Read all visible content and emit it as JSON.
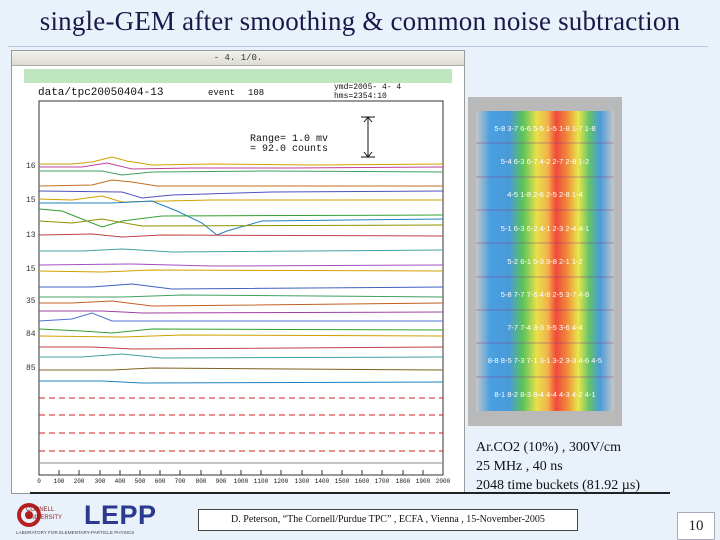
{
  "slide": {
    "title": "single-GEM after smoothing & common noise subtraction",
    "page_number": "10",
    "credit": "D. Peterson, “The Cornell/Purdue TPC” , ECFA , Vienna , 15-November-2005"
  },
  "scope": {
    "window_bar": "- 4. 1/0.",
    "file": "data/tpc20050404-13",
    "event_label": "event",
    "event_value": "108",
    "ymd": "ymd=2005- 4- 4",
    "hms": "hms=2354:10",
    "range_line1": "Range=    1.0 mv",
    "range_line2": "=   92.0  counts",
    "channel_labels": [
      "16",
      "15",
      "13",
      "15",
      "35",
      "84",
      "85"
    ],
    "x_ticks": [
      "0",
      "100",
      "200",
      "300",
      "400",
      "500",
      "600",
      "700",
      "800",
      "900",
      "1000",
      "1100",
      "1200",
      "1300",
      "1400",
      "1500",
      "1600",
      "1700",
      "1800",
      "1900",
      "2000"
    ]
  },
  "pads": {
    "rows": [
      "5-8 3-7 6-6 5-5 1-5 1-8 1-7 1-8",
      "5-4 6-3 6-7 4-2 2-7 2-8 1-2",
      "4-5 1-8 2-6 2-5 2-8 1-4",
      "5-1 6-3 6-2 4-1 2-3 2-4 4-1",
      "5-2 6-1 5-3 3-8 2-1 1-2",
      "5-8 7-7 7-6 4-8 2-5 3-7 4-8",
      "7-7 7-4 3-3 3-5 3-6 4-4",
      "8-8 8-5 7-3 7-1 3-1 3-2 3-3 4-6 4-5",
      "8-1 8-2 8-3 8-4 4-4 4-3 4-2 4-1"
    ]
  },
  "info": {
    "line1": "Ar.CO2 (10%) , 300V/cm",
    "line2": "25 MHz , 40 ns",
    "line3": "2048 time buckets  (81.92 µs)"
  },
  "logo": {
    "small1": "CORNELL",
    "small2": "UNIVERSITY",
    "name": "LEPP",
    "sub": "LABORATORY FOR ELEMENTARY-PARTICLE PHYSICS"
  }
}
